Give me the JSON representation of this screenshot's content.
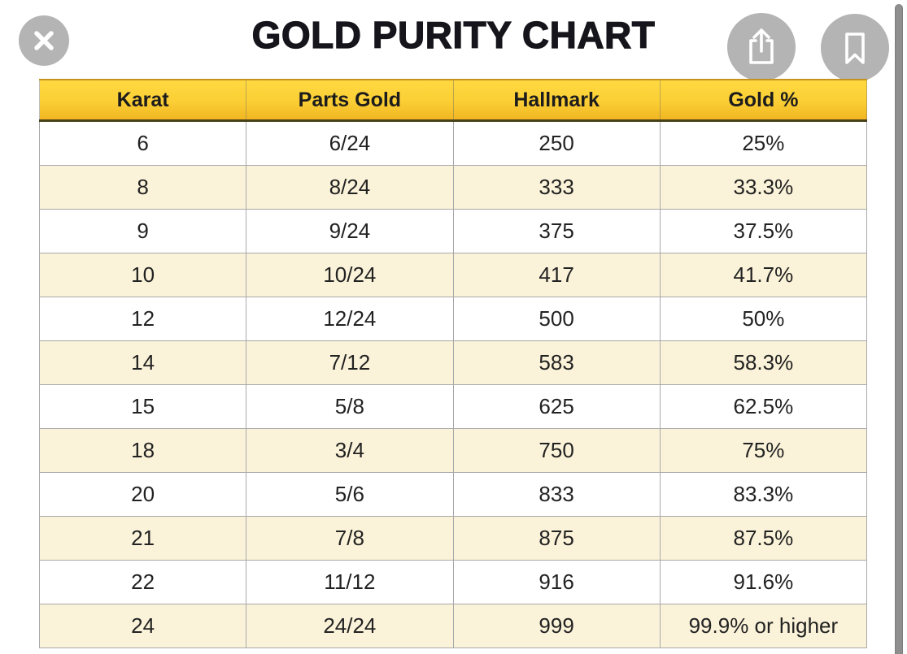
{
  "title": "GOLD PURITY CHART",
  "toolbar": {
    "close_icon": "close",
    "share_icon": "share",
    "bookmark_icon": "bookmark"
  },
  "colors": {
    "header_gold_top": "#ffd941",
    "header_gold_bottom": "#f1b622",
    "header_border_dark": "#474218",
    "row_cream": "#fbf3d9",
    "row_white": "#ffffff",
    "button_gray": "#b4b4b4",
    "scrollbar_gray": "#8e8e8e",
    "text_black": "#15151b"
  },
  "chart_data": {
    "type": "table",
    "title": "GOLD PURITY CHART",
    "columns": [
      "Karat",
      "Parts Gold",
      "Hallmark",
      "Gold %"
    ],
    "rows": [
      [
        "6",
        "6/24",
        "250",
        "25%"
      ],
      [
        "8",
        "8/24",
        "333",
        "33.3%"
      ],
      [
        "9",
        "9/24",
        "375",
        "37.5%"
      ],
      [
        "10",
        "10/24",
        "417",
        "41.7%"
      ],
      [
        "12",
        "12/24",
        "500",
        "50%"
      ],
      [
        "14",
        "7/12",
        "583",
        "58.3%"
      ],
      [
        "15",
        "5/8",
        "625",
        "62.5%"
      ],
      [
        "18",
        "3/4",
        "750",
        "75%"
      ],
      [
        "20",
        "5/6",
        "833",
        "83.3%"
      ],
      [
        "21",
        "7/8",
        "875",
        "87.5%"
      ],
      [
        "22",
        "11/12",
        "916",
        "91.6%"
      ],
      [
        "24",
        "24/24",
        "999",
        "99.9% or higher"
      ]
    ]
  }
}
